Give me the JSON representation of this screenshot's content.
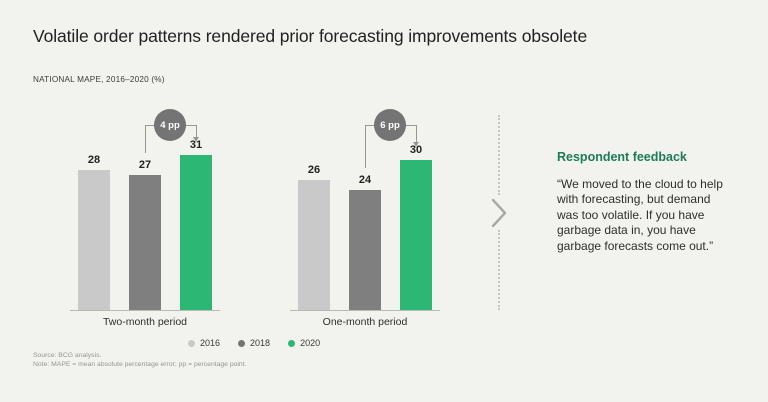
{
  "header": {
    "title": "Volatile order patterns rendered prior forecasting improvements obsolete",
    "subtitle": "NATIONAL MAPE, 2016–2020 (%)"
  },
  "chart_data": {
    "type": "bar",
    "title": "NATIONAL MAPE, 2016–2020 (%)",
    "categories": [
      "2016",
      "2018",
      "2020"
    ],
    "groups": [
      {
        "label": "Two-month period",
        "values": [
          28,
          27,
          31
        ],
        "annotation": {
          "label": "4 pp",
          "from_category": "2018",
          "to_category": "2020"
        }
      },
      {
        "label": "One-month period",
        "values": [
          26,
          24,
          30
        ],
        "annotation": {
          "label": "6 pp",
          "from_category": "2018",
          "to_category": "2020"
        }
      }
    ],
    "series_colors": {
      "2016": "#c9c9c9",
      "2018": "#7f7f7f",
      "2020": "#2cb774"
    },
    "ylim": [
      0,
      42
    ],
    "grid": false,
    "legend_position": "bottom"
  },
  "legend": {
    "items": [
      {
        "label": "2016",
        "color": "#c9c9c9"
      },
      {
        "label": "2018",
        "color": "#757575"
      },
      {
        "label": "2020",
        "color": "#2cb774"
      }
    ]
  },
  "feedback": {
    "heading": "Respondent feedback",
    "quote": "“We moved to the cloud to help\nwith forecasting, but demand\nwas too volatile. If you have\ngarbage data in, you have\ngarbage forecasts come out.”"
  },
  "footnotes": {
    "source": "Source: BCG analysis.",
    "note": "Note: MAPE = mean absolute percentage error; pp = percentage point."
  },
  "colors": {
    "background": "#f2f2ee",
    "badge": "#747474",
    "connector": "#979792",
    "heading_green": "#1e7c57"
  }
}
